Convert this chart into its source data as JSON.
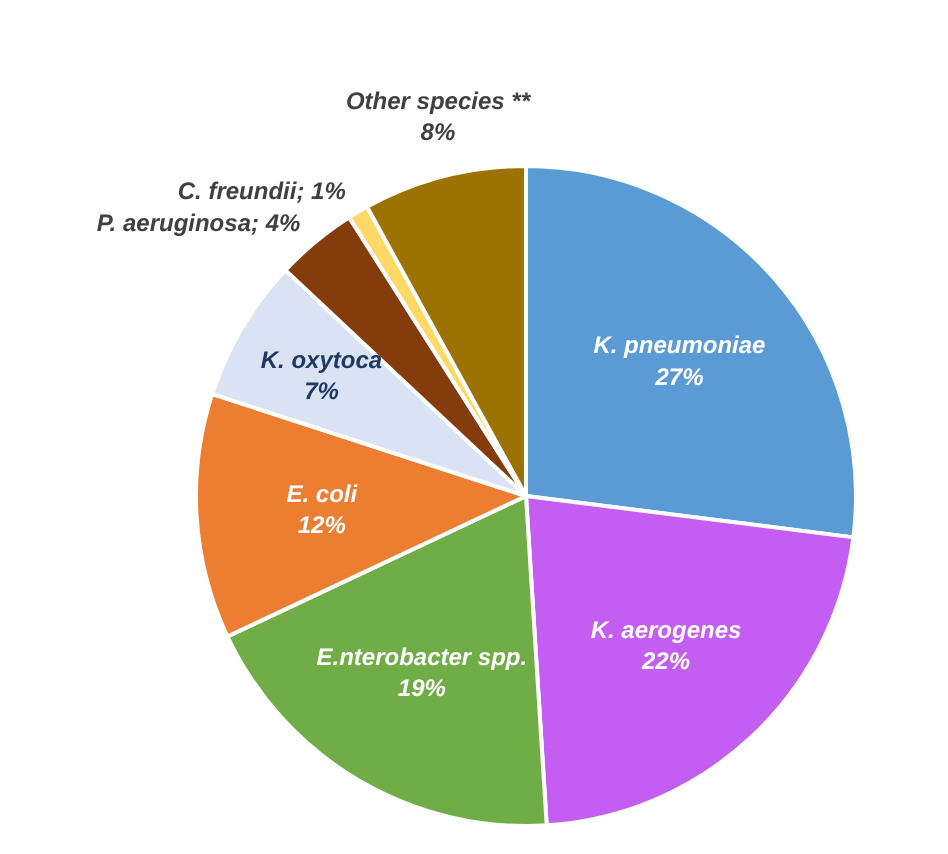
{
  "chart_data": {
    "type": "pie",
    "categories": [
      "K. pneumoniae",
      "K. aerogenes",
      "E.nterobacter spp.",
      "E. coli",
      "K. oxytoca",
      "P.  aeruginosa",
      "C. freundii",
      "Other species **"
    ],
    "values": [
      27,
      22,
      19,
      12,
      7,
      4,
      1,
      8
    ],
    "value_labels": [
      "27%",
      "22%",
      "19%",
      "12%",
      "7%",
      "4%",
      "1%",
      "8%"
    ],
    "colors": [
      "#5b9bd5",
      "#c45ef2",
      "#70ad47",
      "#ed7d31",
      "#dae3f3",
      "#843c0c",
      "#ffd966",
      "#9c7203"
    ],
    "legend": false
  }
}
